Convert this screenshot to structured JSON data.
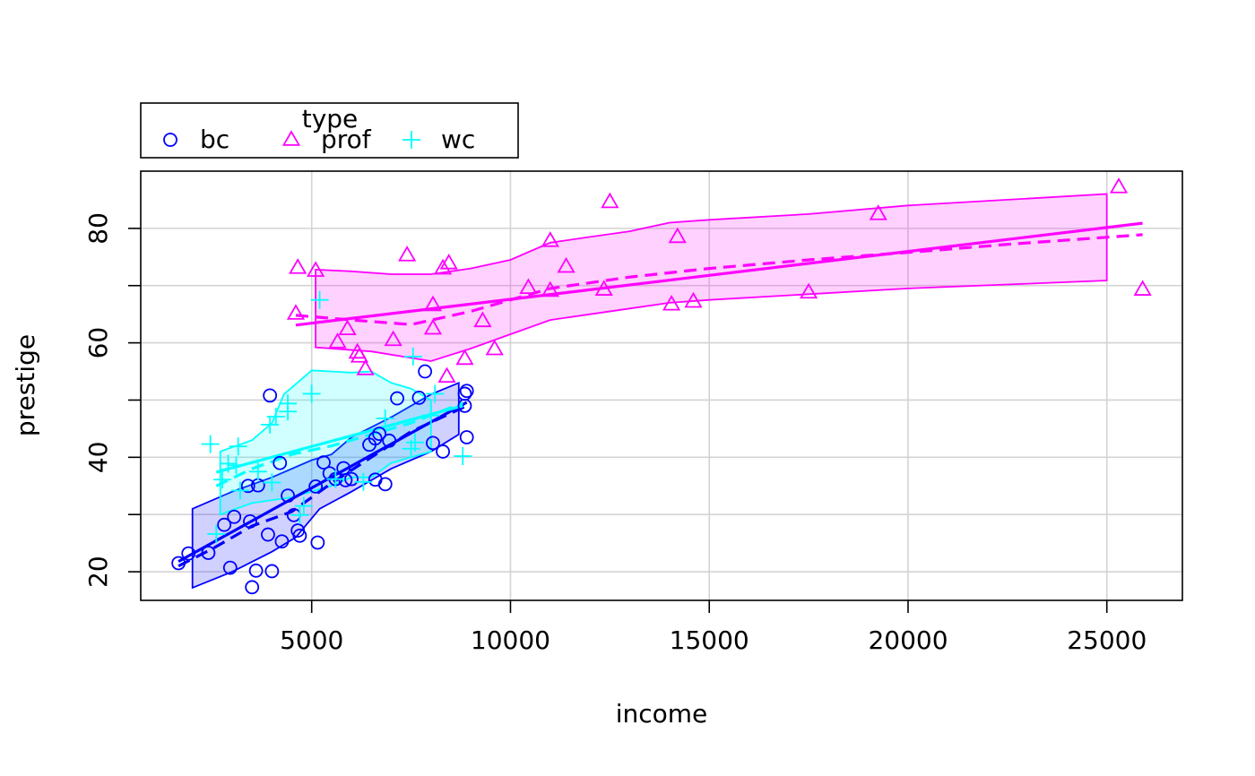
{
  "chart_data": {
    "type": "scatter",
    "title": "",
    "xlabel": "income",
    "ylabel": "prestige",
    "xlim": [
      700,
      26900
    ],
    "ylim": [
      15,
      90
    ],
    "xticks": [
      5000,
      10000,
      15000,
      20000,
      25000
    ],
    "yticks": [
      20,
      40,
      60,
      80
    ],
    "xtick_labels": [
      "5000",
      "10000",
      "15000",
      "20000",
      "25000"
    ],
    "ytick_labels": [
      "20",
      "40",
      "60",
      "80"
    ],
    "grid": true,
    "grid_x": [
      5000,
      10000,
      15000,
      20000,
      25000
    ],
    "grid_y": [
      20,
      30,
      40,
      50,
      60,
      70,
      80
    ],
    "legend": {
      "title": "type",
      "placement": "top-left, above plot",
      "entries": [
        {
          "label": "bc",
          "marker": "circle",
          "color": "#0000ff"
        },
        {
          "label": "prof",
          "marker": "triangle",
          "color": "#ff00ff"
        },
        {
          "label": "wc",
          "marker": "plus",
          "color": "#00ffff"
        }
      ]
    },
    "series": [
      {
        "name": "bc",
        "marker": "circle",
        "color": "#0000ff",
        "fill": "#0000ff",
        "points": [
          [
            1650,
            21.5
          ],
          [
            1900,
            23.2
          ],
          [
            2400,
            23.3
          ],
          [
            2800,
            28.2
          ],
          [
            2950,
            20.7
          ],
          [
            3050,
            29.6
          ],
          [
            3400,
            35.0
          ],
          [
            3450,
            28.8
          ],
          [
            3500,
            17.3
          ],
          [
            3600,
            20.2
          ],
          [
            3650,
            35.1
          ],
          [
            3900,
            26.5
          ],
          [
            3950,
            50.8
          ],
          [
            4000,
            20.1
          ],
          [
            4200,
            39.0
          ],
          [
            4250,
            25.3
          ],
          [
            4400,
            33.3
          ],
          [
            4550,
            29.9
          ],
          [
            4650,
            27.2
          ],
          [
            4700,
            26.3
          ],
          [
            5100,
            34.9
          ],
          [
            5150,
            25.1
          ],
          [
            5300,
            39.1
          ],
          [
            5450,
            37.2
          ],
          [
            5600,
            36.2
          ],
          [
            5800,
            38.1
          ],
          [
            5850,
            36.0
          ],
          [
            6000,
            36.2
          ],
          [
            6450,
            42.2
          ],
          [
            6600,
            36.1
          ],
          [
            6600,
            43.3
          ],
          [
            6700,
            44.1
          ],
          [
            6850,
            35.3
          ],
          [
            6950,
            42.9
          ],
          [
            7150,
            50.3
          ],
          [
            7700,
            50.4
          ],
          [
            7850,
            55.0
          ],
          [
            8050,
            42.5
          ],
          [
            8300,
            41.0
          ],
          [
            8850,
            49.0
          ],
          [
            8850,
            51.1
          ],
          [
            8900,
            43.5
          ],
          [
            8900,
            51.6
          ]
        ],
        "fit_line": [
          [
            1650,
            21.8
          ],
          [
            8900,
            49.6
          ]
        ],
        "smooth_line": [
          [
            1650,
            21.0
          ],
          [
            2500,
            24.0
          ],
          [
            3500,
            28.0
          ],
          [
            4500,
            30.5
          ],
          [
            5500,
            35.5
          ],
          [
            6500,
            40.0
          ],
          [
            7500,
            44.5
          ],
          [
            8900,
            49.0
          ]
        ],
        "band_upper": [
          [
            2000,
            31.0
          ],
          [
            3000,
            34.0
          ],
          [
            4000,
            36.5
          ],
          [
            5000,
            39.5
          ],
          [
            5500,
            40.5
          ],
          [
            6000,
            43.5
          ],
          [
            7000,
            47.0
          ],
          [
            8000,
            51.0
          ],
          [
            8700,
            53.0
          ]
        ],
        "band_lower": [
          [
            2000,
            17.2
          ],
          [
            3000,
            20.0
          ],
          [
            4000,
            23.5
          ],
          [
            4600,
            26.0
          ],
          [
            5200,
            31.0
          ],
          [
            6000,
            34.0
          ],
          [
            7000,
            38.0
          ],
          [
            8000,
            41.0
          ],
          [
            8700,
            44.0
          ]
        ]
      },
      {
        "name": "prof",
        "marker": "triangle",
        "color": "#ff00ff",
        "fill": "#ff00ff",
        "points": [
          [
            4600,
            65.1
          ],
          [
            4650,
            73.1
          ],
          [
            5100,
            72.6
          ],
          [
            5650,
            60.1
          ],
          [
            5900,
            62.4
          ],
          [
            6150,
            58.3
          ],
          [
            6200,
            57.6
          ],
          [
            6350,
            55.4
          ],
          [
            7050,
            60.5
          ],
          [
            7400,
            75.3
          ],
          [
            8050,
            66.6
          ],
          [
            8050,
            62.5
          ],
          [
            8300,
            73.0
          ],
          [
            8400,
            54.1
          ],
          [
            8450,
            73.9
          ],
          [
            8850,
            57.2
          ],
          [
            9300,
            63.8
          ],
          [
            9600,
            58.9
          ],
          [
            10450,
            69.6
          ],
          [
            11000,
            69.1
          ],
          [
            11000,
            77.8
          ],
          [
            11400,
            73.3
          ],
          [
            12350,
            69.3
          ],
          [
            12500,
            84.6
          ],
          [
            14050,
            66.7
          ],
          [
            14200,
            78.5
          ],
          [
            14600,
            67.2
          ],
          [
            17500,
            68.8
          ],
          [
            19250,
            82.5
          ],
          [
            25300,
            87.2
          ],
          [
            25900,
            69.3
          ]
        ],
        "fit_line": [
          [
            4600,
            63.1
          ],
          [
            25900,
            80.9
          ]
        ],
        "smooth_line": [
          [
            4600,
            64.8
          ],
          [
            6000,
            64.0
          ],
          [
            7500,
            63.2
          ],
          [
            9000,
            65.5
          ],
          [
            11000,
            69.5
          ],
          [
            13000,
            71.5
          ],
          [
            15000,
            73.0
          ],
          [
            17500,
            74.5
          ],
          [
            20000,
            75.8
          ],
          [
            22500,
            77.2
          ],
          [
            25900,
            78.9
          ]
        ],
        "band_upper": [
          [
            5100,
            72.8
          ],
          [
            6000,
            72.5
          ],
          [
            7000,
            72.0
          ],
          [
            8000,
            72.0
          ],
          [
            9000,
            73.0
          ],
          [
            10000,
            74.5
          ],
          [
            11000,
            77.5
          ],
          [
            12000,
            78.5
          ],
          [
            13000,
            79.5
          ],
          [
            14000,
            81.0
          ],
          [
            15000,
            81.5
          ],
          [
            17500,
            82.5
          ],
          [
            20000,
            84.0
          ],
          [
            22500,
            85.0
          ],
          [
            25000,
            86.0
          ]
        ],
        "band_lower": [
          [
            5100,
            59.2
          ],
          [
            6500,
            58.5
          ],
          [
            8000,
            56.8
          ],
          [
            9000,
            59.0
          ],
          [
            10000,
            61.5
          ],
          [
            11000,
            64.0
          ],
          [
            12000,
            65.0
          ],
          [
            13000,
            66.0
          ],
          [
            14000,
            67.0
          ],
          [
            15000,
            67.5
          ],
          [
            17500,
            68.5
          ],
          [
            20000,
            69.5
          ],
          [
            22500,
            70.2
          ],
          [
            25000,
            70.9
          ]
        ]
      },
      {
        "name": "wc",
        "marker": "plus",
        "color": "#00ffff",
        "fill": "#00ffff",
        "points": [
          [
            2450,
            42.3
          ],
          [
            2600,
            26.6
          ],
          [
            2750,
            36.1
          ],
          [
            2900,
            38.9
          ],
          [
            3100,
            38.6
          ],
          [
            3150,
            41.9
          ],
          [
            3200,
            34.2
          ],
          [
            3650,
            37.5
          ],
          [
            3950,
            45.7
          ],
          [
            4000,
            35.6
          ],
          [
            4100,
            47.1
          ],
          [
            4400,
            48.0
          ],
          [
            4400,
            49.4
          ],
          [
            4700,
            29.9
          ],
          [
            4800,
            31.5
          ],
          [
            5000,
            51.1
          ],
          [
            5200,
            67.5
          ],
          [
            5600,
            36.2
          ],
          [
            6300,
            35.7
          ],
          [
            6850,
            46.8
          ],
          [
            7500,
            41.5
          ],
          [
            7550,
            57.6
          ],
          [
            7600,
            42.6
          ],
          [
            8000,
            47.3
          ],
          [
            8100,
            51.1
          ],
          [
            8800,
            40.2
          ]
        ],
        "fit_line": [
          [
            2600,
            37.4
          ],
          [
            8800,
            49.0
          ]
        ],
        "smooth_line": [
          [
            2600,
            35.0
          ],
          [
            3500,
            38.0
          ],
          [
            4500,
            40.5
          ],
          [
            5500,
            42.0
          ],
          [
            6500,
            44.0
          ],
          [
            7500,
            46.0
          ],
          [
            8800,
            49.5
          ]
        ],
        "band_upper": [
          [
            2700,
            41.0
          ],
          [
            3500,
            43.0
          ],
          [
            4000,
            46.0
          ],
          [
            4300,
            51.0
          ],
          [
            5000,
            55.2
          ],
          [
            6000,
            54.8
          ],
          [
            6500,
            55.0
          ],
          [
            7000,
            53.0
          ],
          [
            7500,
            52.0
          ],
          [
            8000,
            50.0
          ]
        ],
        "band_lower": [
          [
            2700,
            30.0
          ],
          [
            3500,
            32.0
          ],
          [
            4500,
            33.0
          ],
          [
            5500,
            35.0
          ],
          [
            6000,
            36.5
          ],
          [
            6500,
            36.5
          ],
          [
            7000,
            39.0
          ],
          [
            7500,
            40.0
          ],
          [
            8000,
            41.0
          ]
        ]
      }
    ]
  }
}
